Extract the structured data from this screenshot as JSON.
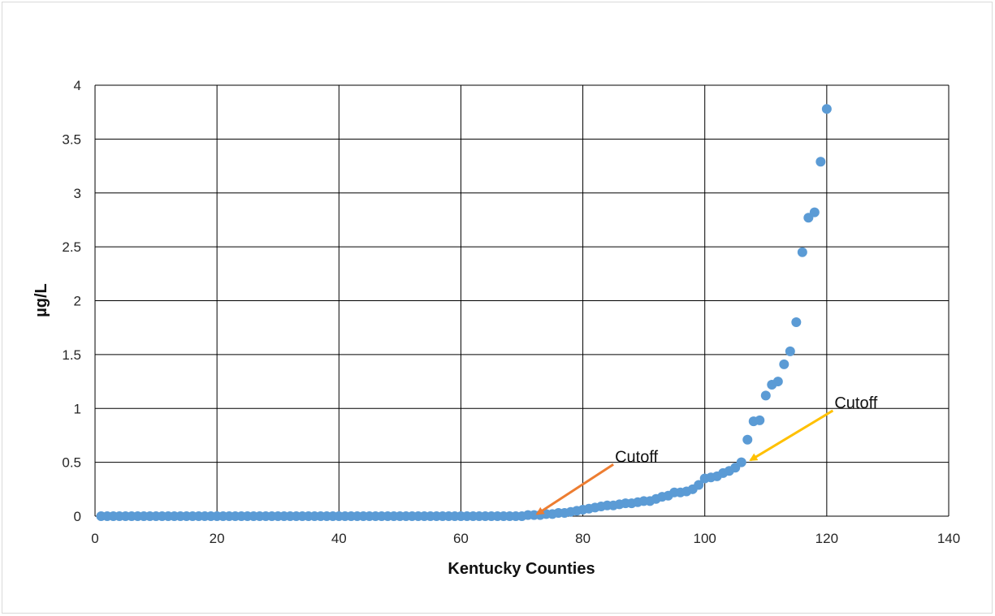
{
  "chart_data": {
    "type": "scatter",
    "title": "",
    "xlabel": "Kentucky Counties",
    "ylabel": "µg/L",
    "xlim": [
      0,
      140
    ],
    "ylim": [
      0,
      4
    ],
    "x_ticks": [
      "0",
      "20",
      "40",
      "60",
      "80",
      "100",
      "120",
      "140"
    ],
    "y_ticks": [
      "0",
      "0.5",
      "1",
      "1.5",
      "2",
      "2.5",
      "3",
      "3.5",
      "4"
    ],
    "grid": true,
    "legend": "none",
    "series": [
      {
        "color": "#5b9bd5",
        "x": [
          1,
          2,
          3,
          4,
          5,
          6,
          7,
          8,
          9,
          10,
          11,
          12,
          13,
          14,
          15,
          16,
          17,
          18,
          19,
          20,
          21,
          22,
          23,
          24,
          25,
          26,
          27,
          28,
          29,
          30,
          31,
          32,
          33,
          34,
          35,
          36,
          37,
          38,
          39,
          40,
          41,
          42,
          43,
          44,
          45,
          46,
          47,
          48,
          49,
          50,
          51,
          52,
          53,
          54,
          55,
          56,
          57,
          58,
          59,
          60,
          61,
          62,
          63,
          64,
          65,
          66,
          67,
          68,
          69,
          70,
          71,
          72,
          73,
          74,
          75,
          76,
          77,
          78,
          79,
          80,
          81,
          82,
          83,
          84,
          85,
          86,
          87,
          88,
          89,
          90,
          91,
          92,
          93,
          94,
          95,
          96,
          97,
          98,
          99,
          100,
          101,
          102,
          103,
          104,
          105,
          106,
          107,
          108,
          109,
          110,
          111,
          112,
          113,
          114,
          115,
          116,
          117,
          118,
          119,
          120
        ],
        "y": [
          0,
          0,
          0,
          0,
          0,
          0,
          0,
          0,
          0,
          0,
          0,
          0,
          0,
          0,
          0,
          0,
          0,
          0,
          0,
          0,
          0,
          0,
          0,
          0,
          0,
          0,
          0,
          0,
          0,
          0,
          0,
          0,
          0,
          0,
          0,
          0,
          0,
          0,
          0,
          0,
          0,
          0,
          0,
          0,
          0,
          0,
          0,
          0,
          0,
          0,
          0,
          0,
          0,
          0,
          0,
          0,
          0,
          0,
          0,
          0,
          0,
          0,
          0,
          0,
          0,
          0,
          0,
          0,
          0,
          0,
          0.01,
          0.01,
          0.01,
          0.02,
          0.02,
          0.03,
          0.03,
          0.04,
          0.05,
          0.06,
          0.07,
          0.08,
          0.09,
          0.1,
          0.1,
          0.11,
          0.12,
          0.12,
          0.13,
          0.14,
          0.14,
          0.16,
          0.18,
          0.19,
          0.22,
          0.22,
          0.23,
          0.25,
          0.29,
          0.35,
          0.36,
          0.37,
          0.4,
          0.42,
          0.45,
          0.5,
          0.71,
          0.88,
          0.89,
          1.12,
          1.22,
          1.25,
          1.41,
          1.53,
          1.8,
          2.45,
          2.77,
          2.82,
          3.29,
          3.78
        ]
      }
    ],
    "annotations": [
      {
        "text": "Cutoff",
        "color": "#ed7d31",
        "from": [
          85,
          0.48
        ],
        "to": [
          72.5,
          0.02
        ]
      },
      {
        "text": "Cutoff",
        "color": "#ffc000",
        "from": [
          121,
          0.98
        ],
        "to": [
          107.5,
          0.52
        ]
      }
    ]
  }
}
